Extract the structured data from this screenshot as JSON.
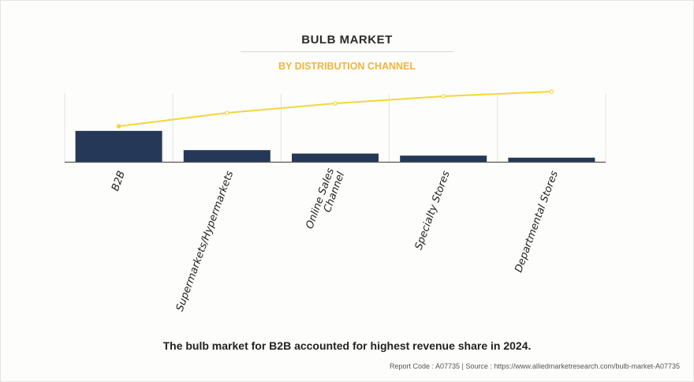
{
  "header": {
    "title": "BULB MARKET",
    "subtitle": "BY DISTRIBUTION CHANNEL"
  },
  "footer": {
    "caption": "The bulb market for B2B accounted for highest revenue share in 2024.",
    "source": "Report Code : A07735  |  Source : https://www.alliedmarketresearch.com/bulb-market-A07735"
  },
  "colors": {
    "bar": "#253858",
    "line": "#f5d63d",
    "subtitle": "#f2b53a"
  },
  "chart_data": {
    "type": "bar",
    "title": "BULB MARKET",
    "subtitle": "BY DISTRIBUTION CHANNEL",
    "xlabel": "",
    "ylabel": "",
    "ylim": [
      0,
      100
    ],
    "grid": true,
    "categories": [
      [
        "B2B"
      ],
      [
        "Supermarkets/Hypermarkets"
      ],
      [
        "Online Sales",
        "Channel"
      ],
      [
        "Specialty Stores"
      ],
      [
        "Departmental Stores"
      ]
    ],
    "values": [
      45,
      17,
      12,
      9,
      6
    ],
    "line": {
      "type": "cumulative-share",
      "values": [
        45,
        62,
        74,
        83,
        89
      ]
    }
  }
}
